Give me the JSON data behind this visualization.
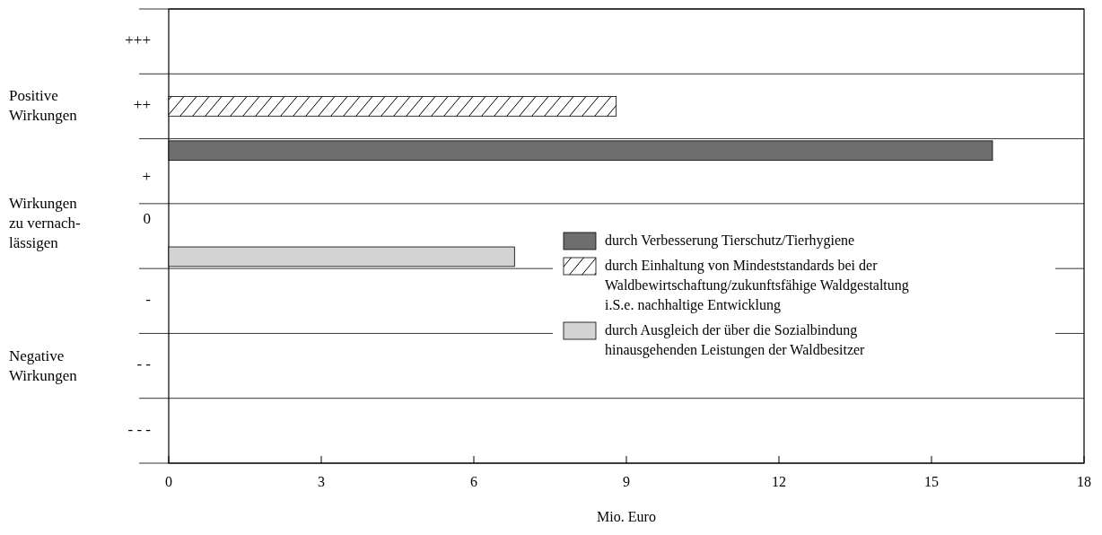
{
  "chart_data": {
    "type": "bar",
    "orientation": "horizontal",
    "categories": [
      "+++",
      "++",
      "+",
      "0",
      "-",
      "- -",
      "- - -"
    ],
    "series": [
      {
        "name": "durch Verbesserung Tierschutz/Tierhygiene",
        "color": "#6e6e6e",
        "values": [
          null,
          null,
          16.2,
          null,
          null,
          null,
          null
        ]
      },
      {
        "name": "durch Einhaltung von Mindeststandards bei der Waldbewirtschaftung/zukunftsfähige Waldgestaltung i.S.e. nachhaltige Entwicklung",
        "color": "#000000",
        "values": [
          null,
          8.8,
          null,
          null,
          null,
          null,
          null
        ]
      },
      {
        "name": "durch Ausgleich der über die Sozialbindung hinausgehenden Leistungen der Waldbesitzer",
        "color": "#d3d3d3",
        "values": [
          null,
          null,
          null,
          6.8,
          null,
          null,
          null
        ]
      }
    ],
    "xlim": [
      0,
      18
    ],
    "xticks": [
      0,
      3,
      6,
      9,
      12,
      15,
      18
    ],
    "xlabel": "Mio. Euro",
    "grid": "y",
    "legend": "right",
    "annotations": [
      "Positive Wirkungen",
      "Wirkungen zu vernach-lässigen",
      "Negative Wirkungen"
    ]
  }
}
